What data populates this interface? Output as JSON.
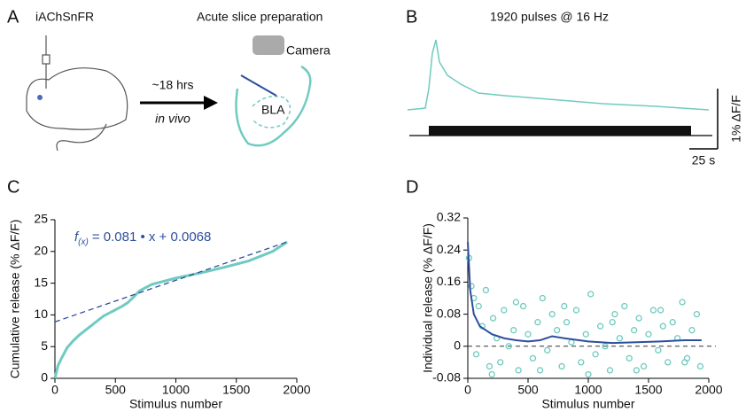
{
  "panels": {
    "a": "A",
    "b": "B",
    "c": "C",
    "d": "D"
  },
  "panel_a": {
    "sensor": "iAChSnFR",
    "prep": "Acute slice preparation",
    "camera": "Camera",
    "time": "~18 hrs",
    "condition": "in vivo",
    "region": "BLA"
  },
  "panel_b": {
    "title": "1920 pulses @ 16 Hz",
    "y_scale": "1% ΔF/F",
    "x_scale": "25 s"
  },
  "chart_data": [
    {
      "type": "line",
      "xlabel": "Stimulus number",
      "ylabel": "Cumulative release (% ΔF/F)",
      "annotation": {
        "f": "f",
        "sub": "(x)",
        "rest": "= 0.081 • x + 0.0068"
      },
      "xlim": [
        0,
        2000
      ],
      "ylim": [
        0,
        25
      ],
      "xticks": [
        0,
        500,
        1000,
        1500,
        2000
      ],
      "yticks": [
        0,
        5,
        10,
        15,
        20,
        25
      ],
      "series": [
        {
          "type": "line",
          "color": "#6fcbc0",
          "width": 3,
          "x": [
            0,
            25,
            50,
            100,
            150,
            200,
            300,
            400,
            500,
            550,
            600,
            650,
            700,
            800,
            900,
            1000,
            1200,
            1400,
            1600,
            1800,
            1920
          ],
          "values": [
            0,
            2,
            3,
            4.8,
            5.9,
            6.8,
            8.3,
            9.8,
            10.8,
            11.3,
            11.9,
            12.8,
            13.8,
            14.8,
            15.3,
            15.8,
            16.6,
            17.5,
            18.5,
            20,
            21.5
          ]
        },
        {
          "type": "line",
          "color": "#2d4e9e",
          "width": 1.3,
          "dash": true,
          "x": [
            0,
            1920
          ],
          "values": [
            8.9,
            21.5
          ]
        }
      ]
    },
    {
      "type": "scatter",
      "xlabel": "Stimulus number",
      "ylabel": "Individual release (% ΔF/F)",
      "xlim": [
        0,
        2000
      ],
      "ylim": [
        -0.08,
        0.32
      ],
      "xticks": [
        0,
        500,
        1000,
        1500,
        2000
      ],
      "yticks": [
        -0.08,
        0,
        0.08,
        0.16,
        0.24,
        0.32
      ],
      "zero_line": true,
      "series": [
        {
          "type": "scatter",
          "color": "#6fcbc0",
          "x": [
            10,
            30,
            50,
            70,
            90,
            120,
            150,
            180,
            210,
            240,
            270,
            300,
            340,
            380,
            420,
            460,
            500,
            540,
            580,
            620,
            660,
            700,
            740,
            780,
            820,
            860,
            900,
            940,
            980,
            1020,
            1060,
            1100,
            1140,
            1180,
            1220,
            1260,
            1300,
            1340,
            1380,
            1420,
            1460,
            1500,
            1540,
            1580,
            1620,
            1660,
            1700,
            1740,
            1780,
            1820,
            1860,
            1900,
            1930,
            200,
            400,
            600,
            800,
            1000,
            1200,
            1400,
            1600,
            1800
          ],
          "values": [
            0.22,
            0.15,
            0.12,
            -0.02,
            0.1,
            0.05,
            0.14,
            -0.05,
            0.07,
            0.02,
            -0.04,
            0.09,
            0.0,
            0.04,
            -0.06,
            0.1,
            0.03,
            -0.03,
            0.06,
            0.12,
            -0.01,
            0.08,
            0.04,
            -0.05,
            0.06,
            0.01,
            0.09,
            -0.04,
            0.03,
            0.13,
            -0.02,
            0.05,
            0.0,
            -0.06,
            0.08,
            0.02,
            0.1,
            -0.03,
            0.04,
            0.07,
            -0.05,
            0.03,
            0.09,
            -0.01,
            0.05,
            -0.04,
            0.06,
            0.02,
            0.11,
            -0.03,
            0.04,
            0.08,
            -0.05,
            -0.07,
            0.11,
            -0.06,
            0.1,
            -0.07,
            0.06,
            -0.06,
            0.09,
            -0.04
          ]
        },
        {
          "type": "line",
          "color": "#2d4e9e",
          "width": 2,
          "x": [
            0,
            20,
            50,
            100,
            200,
            300,
            400,
            500,
            600,
            700,
            800,
            1000,
            1200,
            1400,
            1600,
            1800,
            1940
          ],
          "values": [
            0.26,
            0.14,
            0.08,
            0.05,
            0.03,
            0.02,
            0.015,
            0.012,
            0.015,
            0.025,
            0.02,
            0.012,
            0.008,
            0.01,
            0.012,
            0.015,
            0.015
          ]
        }
      ]
    }
  ]
}
